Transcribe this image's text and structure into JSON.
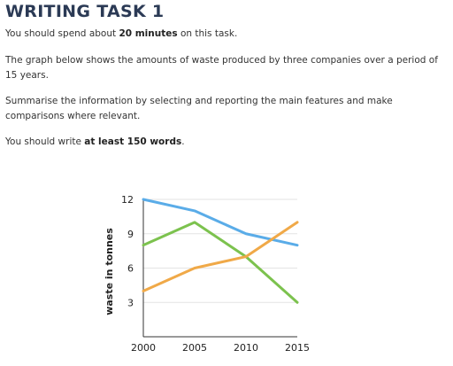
{
  "task": {
    "title": "WRITING TASK 1",
    "p1_pre": "You should spend about ",
    "p1_bold": "20 minutes",
    "p1_post": " on this task.",
    "p2": "The graph below shows the amounts of waste produced by three companies over a period of 15 years.",
    "p3": "Summarise the information by selecting and reporting the main features and make comparisons where relevant.",
    "p4_pre": "You should write ",
    "p4_bold": "at least 150 words",
    "p4_post": "."
  },
  "chart_data": {
    "type": "line",
    "x": [
      2000,
      2005,
      2010,
      2015
    ],
    "xticks": [
      "2000",
      "2005",
      "2010",
      "2015"
    ],
    "yticks": [
      "3",
      "6",
      "9",
      "12"
    ],
    "ylabel": "waste in tonnes",
    "xlabel": "",
    "ylim": [
      0,
      12
    ],
    "grid": "horizontal",
    "legend": "none",
    "series": [
      {
        "color": "#5aace8",
        "values": [
          12,
          11,
          9,
          8
        ]
      },
      {
        "color": "#7cc24e",
        "values": [
          8,
          10,
          7,
          3
        ]
      },
      {
        "color": "#f0a948",
        "values": [
          4,
          6,
          7,
          10
        ]
      }
    ]
  }
}
